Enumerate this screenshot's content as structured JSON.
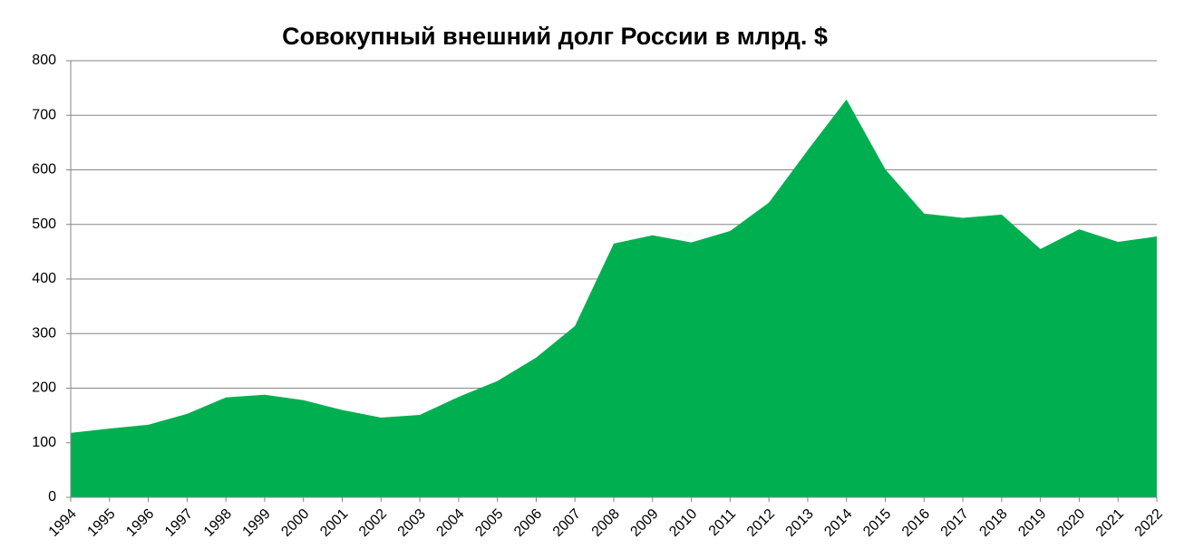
{
  "chart_data": {
    "type": "area",
    "title": "Совокупный внешний долг России в млрд. $",
    "categories": [
      "1994",
      "1995",
      "1996",
      "1997",
      "1998",
      "1999",
      "2000",
      "2001",
      "2002",
      "2003",
      "2004",
      "2005",
      "2006",
      "2007",
      "2008",
      "2009",
      "2010",
      "2011",
      "2012",
      "2013",
      "2014",
      "2015",
      "2016",
      "2017",
      "2018",
      "2019",
      "2020",
      "2021",
      "2022"
    ],
    "values": [
      118,
      126,
      133,
      153,
      183,
      188,
      178,
      160,
      146,
      151,
      184,
      213,
      256,
      314,
      465,
      480,
      467,
      488,
      540,
      636,
      729,
      601,
      520,
      512,
      518,
      455,
      491,
      468,
      478
    ],
    "color": "#00b050",
    "ylim": [
      0,
      800
    ],
    "yticks": [
      0,
      100,
      200,
      300,
      400,
      500,
      600,
      700,
      800
    ],
    "grid": true
  }
}
